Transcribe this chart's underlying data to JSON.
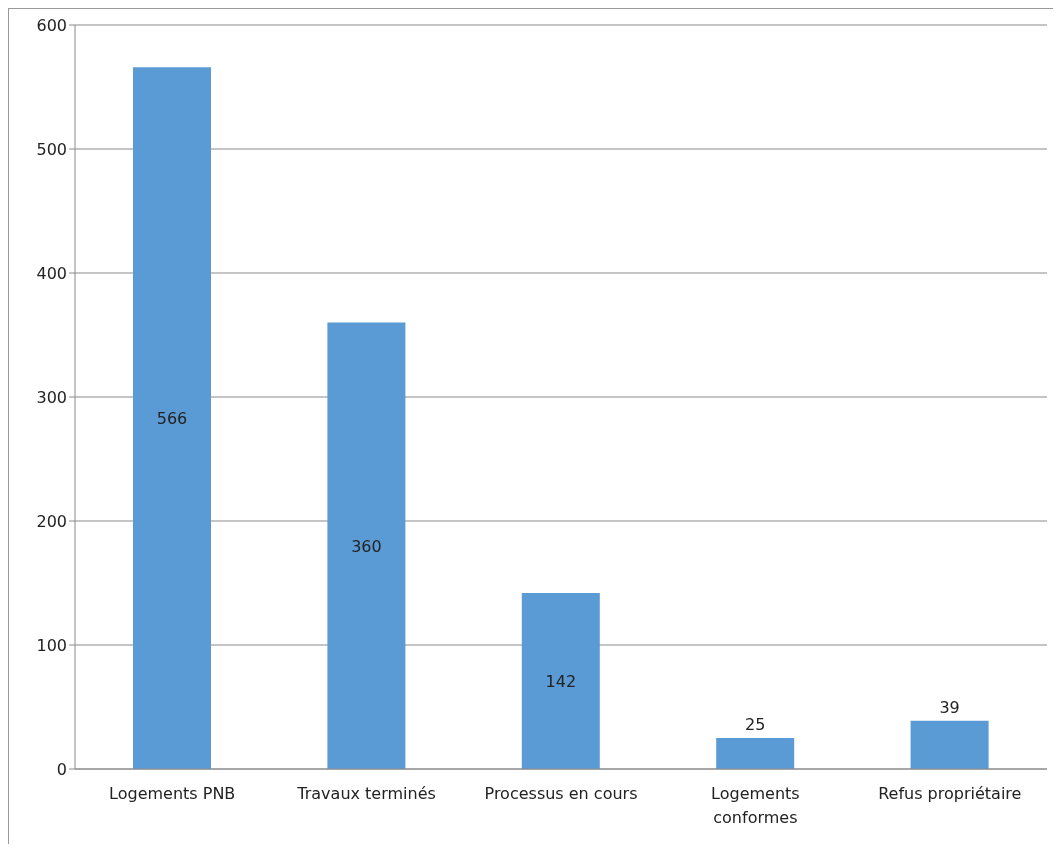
{
  "chart_data": {
    "type": "bar",
    "categories": [
      "Logements PNB",
      "Travaux terminés",
      "Processus en cours",
      "Logements conformes",
      "Refus propriétaire"
    ],
    "values": [
      566,
      360,
      142,
      25,
      39
    ],
    "color": "#5b9bd5",
    "ylim": [
      0,
      600
    ],
    "yticks": [
      0,
      100,
      200,
      300,
      400,
      500,
      600
    ],
    "grid": "y",
    "data_labels": true
  }
}
